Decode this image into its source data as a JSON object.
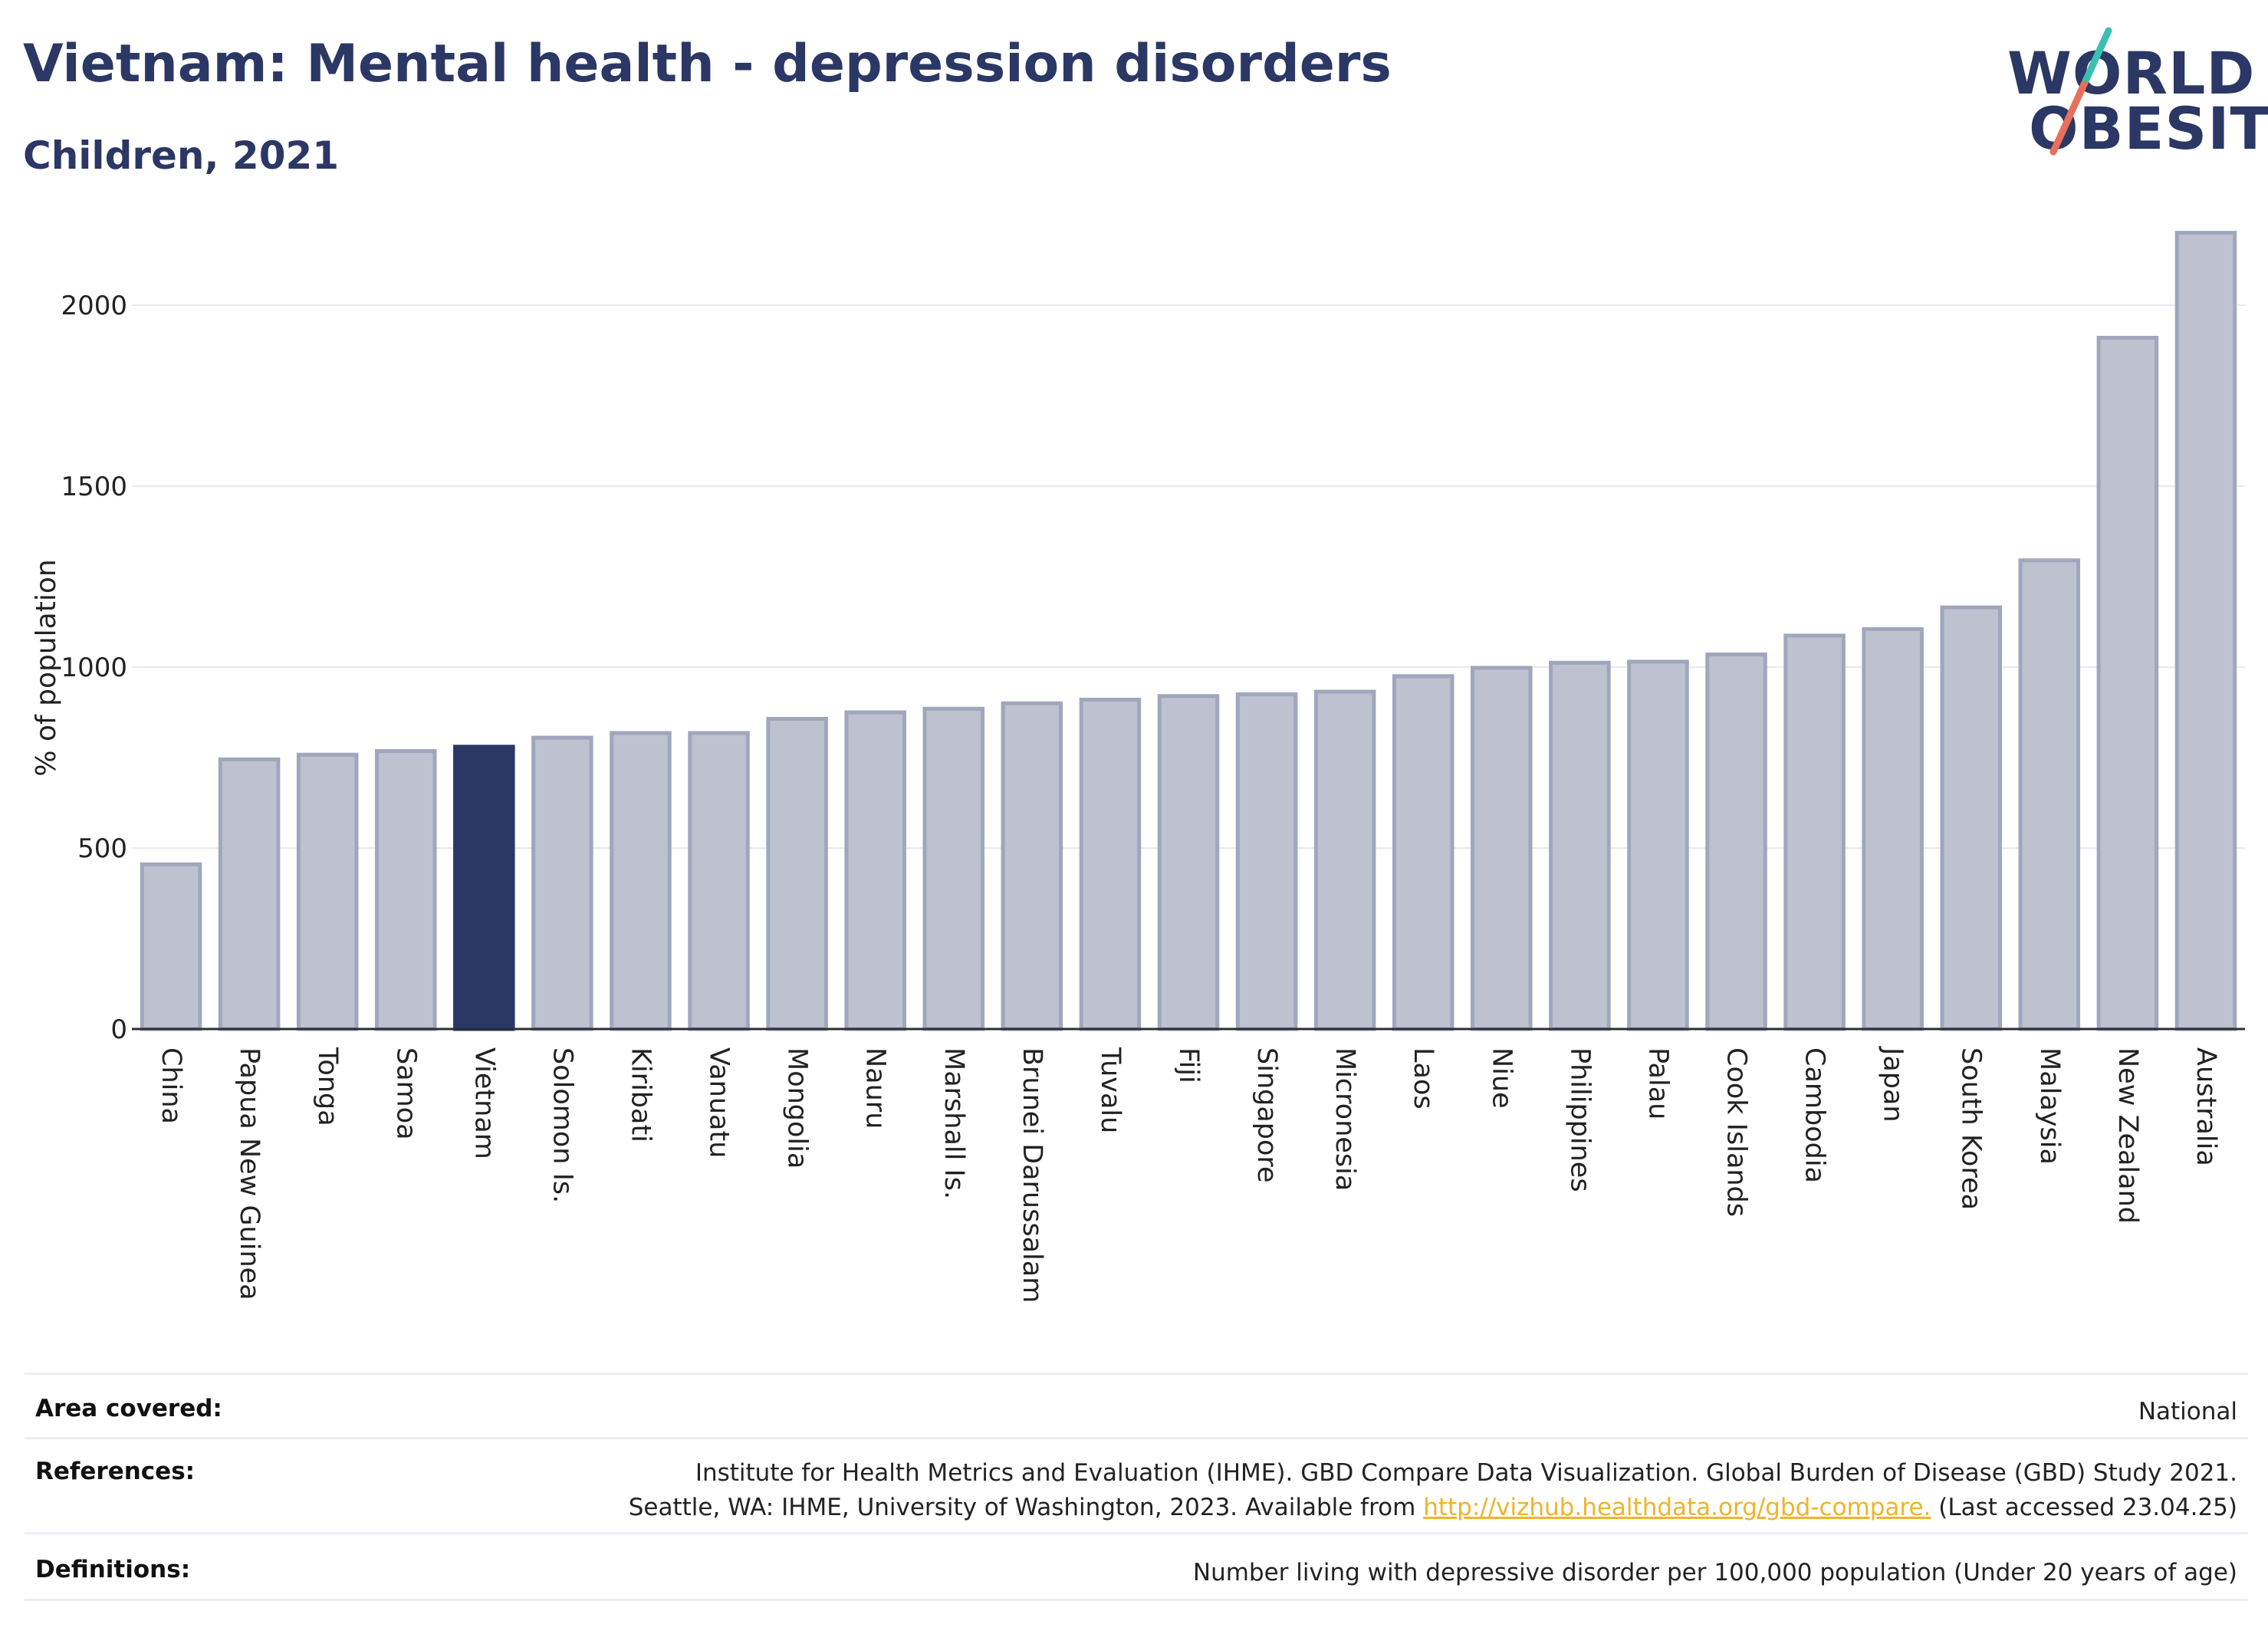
{
  "header": {
    "title": "Vietnam: Mental health - depression disorders",
    "subtitle": "Children, 2021"
  },
  "logo": {
    "line1": "WORLD",
    "line2": "OBESITY"
  },
  "colors": {
    "highlight": "#2b3764",
    "bar_fill": "#bec2d0",
    "bar_stroke": "#a0a6bb",
    "grid": "#e8e9f0",
    "logo_teal": "#3bbfb3",
    "logo_coral": "#e8705b"
  },
  "chart_data": {
    "type": "bar",
    "title": "Vietnam: Mental health - depression disorders",
    "subtitle": "Children, 2021",
    "ylabel": "% of population",
    "xlabel": "",
    "ylim": [
      0,
      2250
    ],
    "yticks": [
      0,
      500,
      1000,
      1500,
      2000
    ],
    "grid": true,
    "highlight": "Vietnam",
    "categories": [
      "China",
      "Papua New Guinea",
      "Tonga",
      "Samoa",
      "Vietnam",
      "Solomon Is.",
      "Kiribati",
      "Vanuatu",
      "Mongolia",
      "Nauru",
      "Marshall Is.",
      "Brunei Darussalam",
      "Tuvalu",
      "Fiji",
      "Singapore",
      "Micronesia",
      "Laos",
      "Niue",
      "Philippines",
      "Palau",
      "Cook Islands",
      "Cambodia",
      "Japan",
      "South Korea",
      "Malaysia",
      "New Zealand",
      "Australia"
    ],
    "values": [
      455,
      745,
      758,
      768,
      780,
      805,
      818,
      818,
      857,
      875,
      885,
      900,
      910,
      920,
      925,
      932,
      975,
      998,
      1012,
      1015,
      1035,
      1087,
      1105,
      1165,
      1295,
      1910,
      2200
    ]
  },
  "footer": {
    "area_label": "Area covered:",
    "area_value": "National",
    "refs_label": "References:",
    "refs_line1": "Institute for Health Metrics and Evaluation (IHME). GBD Compare Data Visualization. Global Burden of Disease (GBD) Study 2021.",
    "refs_line2_pre": "Seattle, WA: IHME, University of Washington, 2023. Available from ",
    "refs_link": "http://vizhub.healthdata.org/gbd-compare.",
    "refs_line2_post": " (Last accessed 23.04.25)",
    "defs_label": "Definitions:",
    "defs_value": "Number living with depressive disorder per 100,000 population (Under 20 years of age)"
  }
}
